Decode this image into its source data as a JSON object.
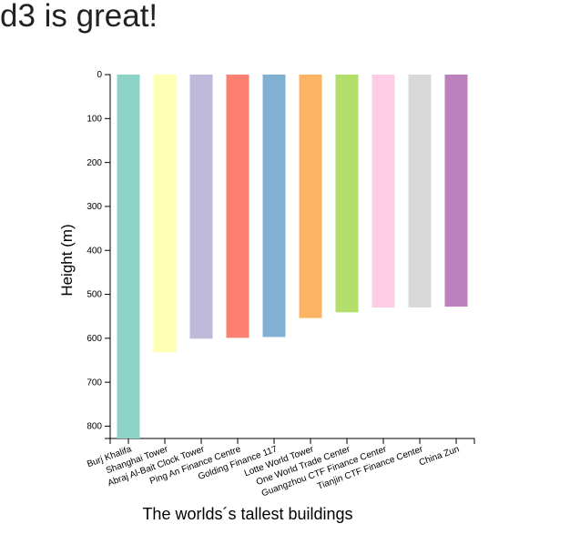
{
  "page": {
    "heading": "d3 is great!"
  },
  "chart_data": {
    "type": "bar",
    "title": "",
    "xlabel": "The worlds´s tallest buildings",
    "ylabel": "Height (m)",
    "ylim": [
      0,
      828
    ],
    "y_ticks": [
      0,
      100,
      200,
      300,
      400,
      500,
      600,
      700,
      800
    ],
    "y_direction": "downward",
    "grid": false,
    "legend": "none",
    "categories": [
      "Burj Khalifa",
      "Shanghai Tower",
      "Abraj Al-Bait Clock Tower",
      "Ping An Finance Centre",
      "Golding Finance 117",
      "Lotte World Tower",
      "One World Trade Center",
      "Guangzhou CTF Finance Center",
      "Tianjin CTF Finance Center",
      "China Zun"
    ],
    "values": [
      828,
      632,
      601,
      599,
      597,
      554,
      541,
      530,
      530,
      528
    ],
    "colors": [
      "#8dd3c7",
      "#ffffb3",
      "#bebada",
      "#fb8072",
      "#80b1d3",
      "#fdb462",
      "#b3de69",
      "#fccde5",
      "#d9d9d9",
      "#bc80bd"
    ]
  }
}
